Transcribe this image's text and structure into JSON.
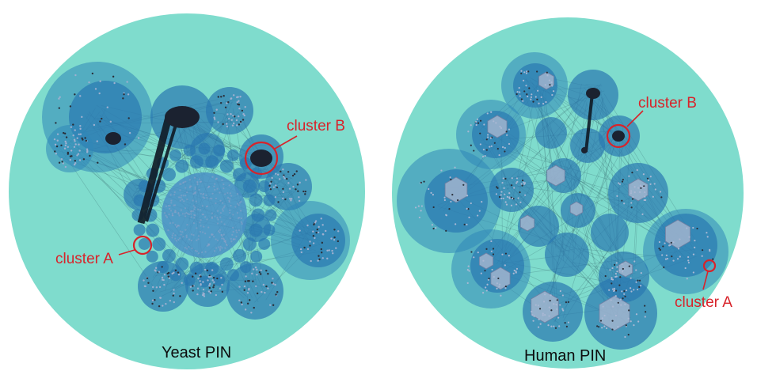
{
  "panels": [
    {
      "title": "Yeast PIN",
      "labels": {
        "cluster_a": "cluster A",
        "cluster_b": "cluster B"
      }
    },
    {
      "title": "Human PIN",
      "labels": {
        "cluster_a": "cluster A",
        "cluster_b": "cluster B"
      }
    }
  ],
  "colors": {
    "background_circle": "#7fdccd",
    "cluster_fill": "#2a78b0",
    "highlight": "#d8232a",
    "text": "#0d0d0d"
  }
}
